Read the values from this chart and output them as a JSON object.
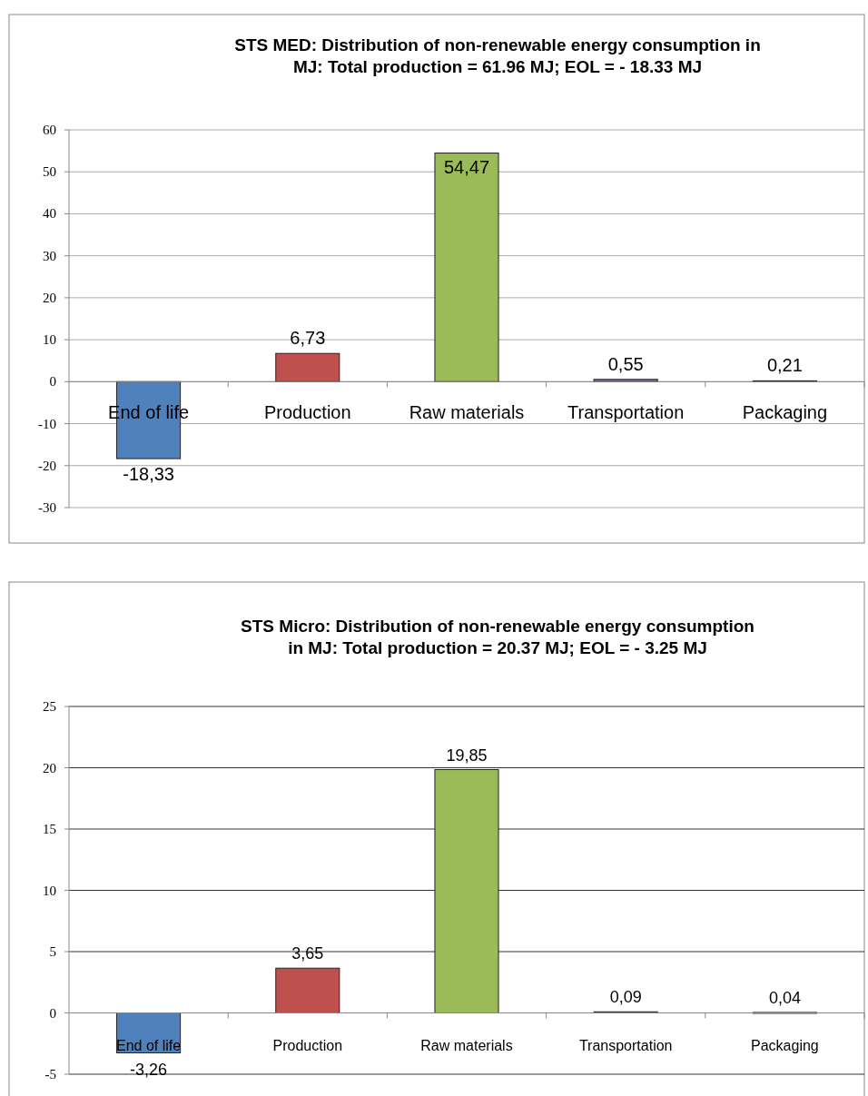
{
  "chart_data": [
    {
      "type": "bar",
      "title": "STS MED: Distribution of non-renewable energy consumption in MJ: Total production  = 61.96  MJ; EOL = - 18.33  MJ",
      "categories": [
        "End of life",
        "Production",
        "Raw materials",
        "Transportation",
        "Packaging"
      ],
      "values": [
        -18.33,
        6.73,
        54.47,
        0.55,
        0.21
      ],
      "value_labels": [
        "-18,33",
        "6,73",
        "54,47",
        "0,55",
        "0,21"
      ],
      "colors": [
        "#4f81bd",
        "#c0504d",
        "#9bbb59",
        "#8064a2",
        "#4bacc6"
      ],
      "ylim": [
        -30,
        60
      ],
      "yticks": [
        -30,
        -20,
        -10,
        0,
        10,
        20,
        30,
        40,
        50,
        60
      ],
      "grid": "y"
    },
    {
      "type": "bar",
      "title": "STS Micro: Distribution of non-renewable energy consumption in MJ: Total production  = 20.37  MJ; EOL = - 3.25  MJ",
      "categories": [
        "End of life",
        "Production",
        "Raw materials",
        "Transportation",
        "Packaging"
      ],
      "values": [
        -3.26,
        3.65,
        19.85,
        0.09,
        0.04
      ],
      "value_labels": [
        "-3,26",
        "3,65",
        "19,85",
        "0,09",
        "0,04"
      ],
      "colors": [
        "#4f81bd",
        "#c0504d",
        "#9bbb59",
        "#8064a2",
        "#4bacc6"
      ],
      "ylim": [
        -5,
        25
      ],
      "yticks": [
        -5,
        0,
        5,
        10,
        15,
        20,
        25
      ],
      "grid": "y"
    }
  ]
}
